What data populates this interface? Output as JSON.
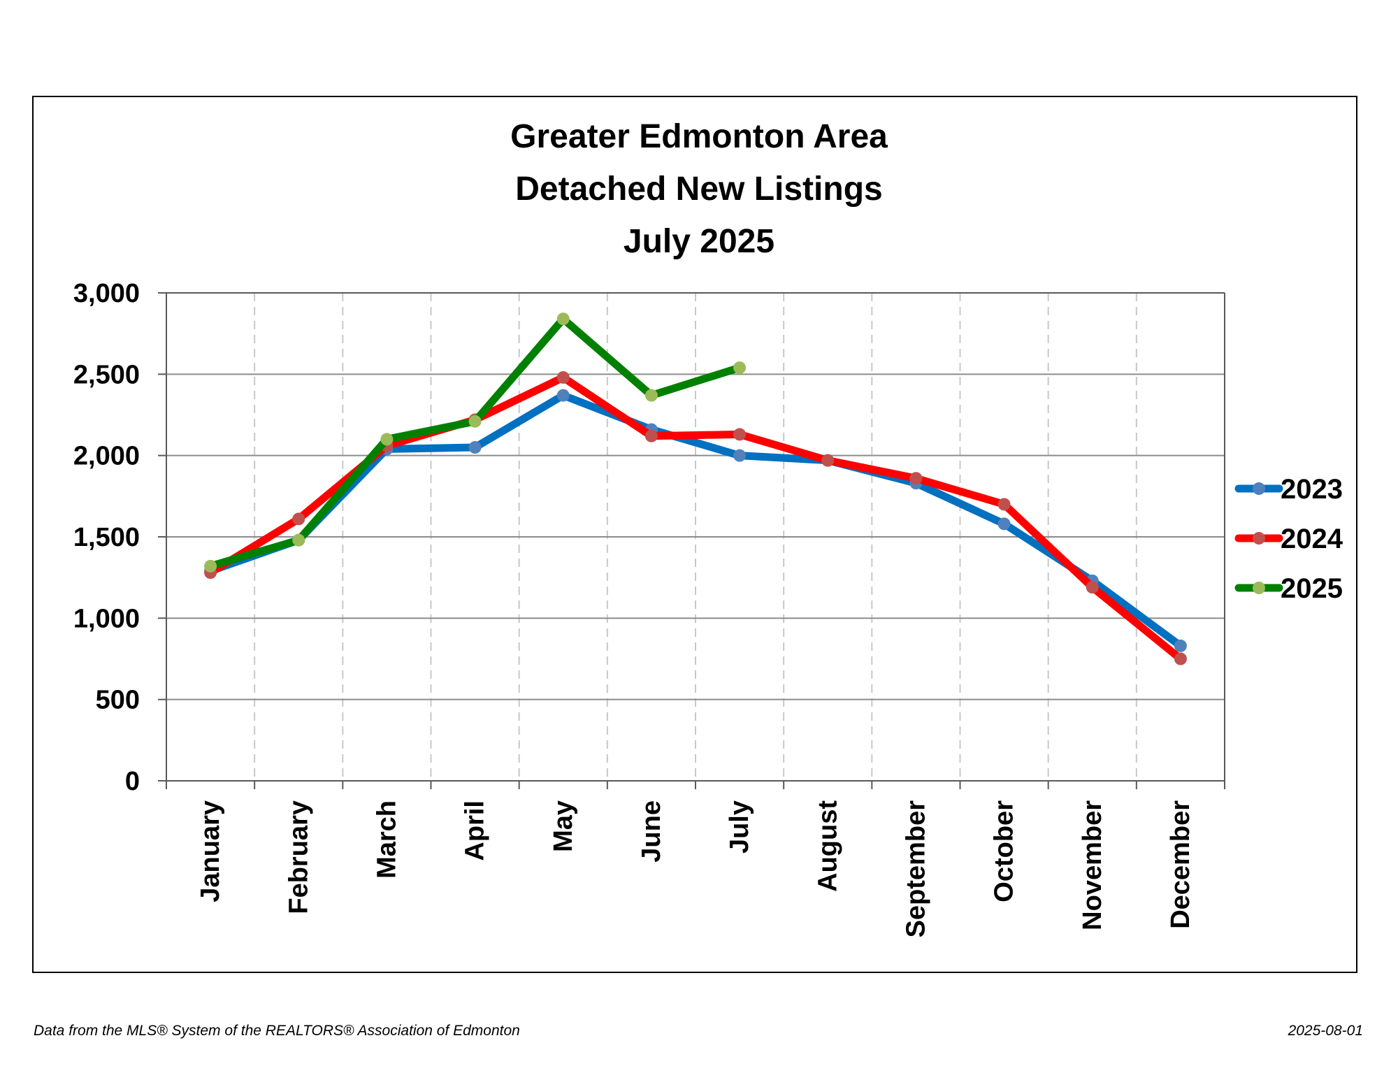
{
  "chart_data": {
    "type": "line",
    "title": [
      "Greater Edmonton Area",
      "Detached New Listings",
      "July 2025"
    ],
    "xlabel": "",
    "ylabel": "",
    "categories": [
      "January",
      "February",
      "March",
      "April",
      "May",
      "June",
      "July",
      "August",
      "September",
      "October",
      "November",
      "December"
    ],
    "ylim": [
      0,
      3000
    ],
    "yticks": [
      0,
      500,
      1000,
      1500,
      2000,
      2500,
      3000
    ],
    "ytick_labels": [
      "0",
      "500",
      "1,000",
      "1,500",
      "2,000",
      "2,500",
      "3,000"
    ],
    "grid": {
      "horizontal": "solid",
      "vertical": "dashed"
    },
    "legend_position": "right",
    "series": [
      {
        "name": "2023",
        "color": "#0070C0",
        "marker_color": "#4F81BD",
        "values": [
          1290,
          1480,
          2040,
          2050,
          2370,
          2160,
          2000,
          1970,
          1830,
          1580,
          1230,
          830
        ]
      },
      {
        "name": "2024",
        "color": "#FF0000",
        "marker_color": "#C0504D",
        "values": [
          1280,
          1610,
          2060,
          2220,
          2480,
          2120,
          2130,
          1970,
          1860,
          1700,
          1190,
          750
        ]
      },
      {
        "name": "2025",
        "color": "#008000",
        "marker_color": "#9BBB59",
        "values": [
          1320,
          1480,
          2100,
          2210,
          2840,
          2370,
          2540,
          null,
          null,
          null,
          null,
          null
        ]
      }
    ]
  },
  "footer": {
    "source": "Data from the MLS® System of the REALTORS® Association of Edmonton",
    "date": "2025-08-01"
  }
}
